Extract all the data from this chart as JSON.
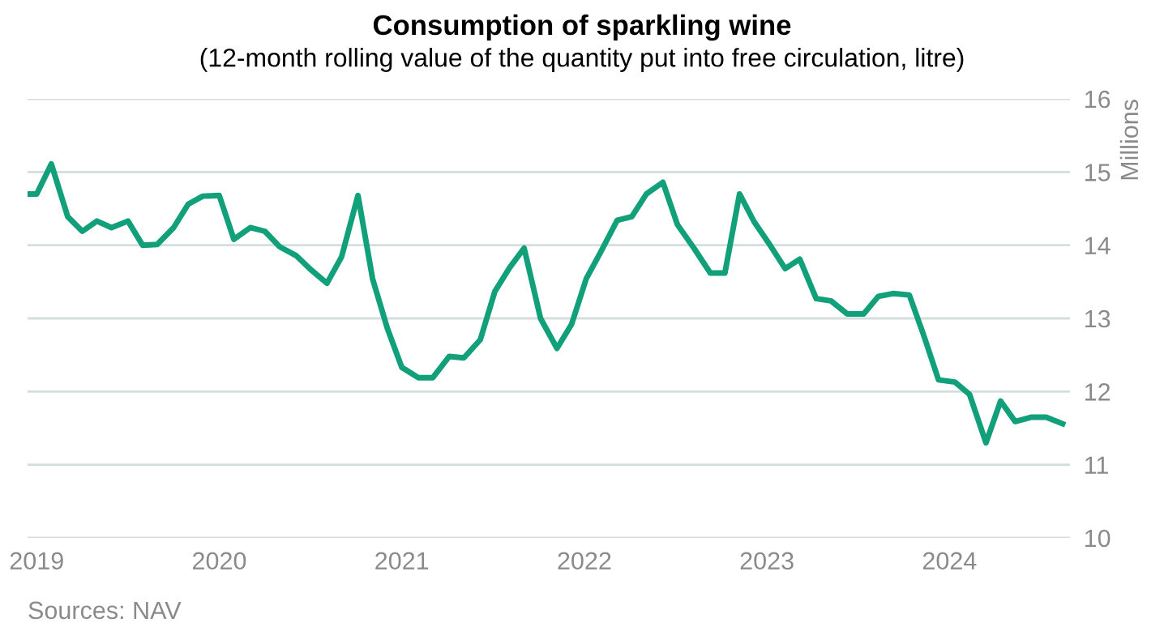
{
  "chart_data": {
    "type": "line",
    "title": "Consumption of sparkling wine",
    "subtitle": "(12-month rolling value of the quantity put into free circulation, litre)",
    "ylabel": "Millions",
    "annotations": [
      "Sources: NAV"
    ],
    "x": [
      2018.96,
      2019.0,
      2019.08,
      2019.17,
      2019.25,
      2019.33,
      2019.41,
      2019.5,
      2019.58,
      2019.66,
      2019.75,
      2019.83,
      2019.91,
      2020.0,
      2020.08,
      2020.17,
      2020.25,
      2020.33,
      2020.42,
      2020.5,
      2020.59,
      2020.67,
      2020.76,
      2020.84,
      2020.92,
      2021.0,
      2021.09,
      2021.17,
      2021.26,
      2021.34,
      2021.43,
      2021.51,
      2021.59,
      2021.67,
      2021.76,
      2021.85,
      2021.93,
      2022.01,
      2022.09,
      2022.18,
      2022.26,
      2022.34,
      2022.43,
      2022.51,
      2022.6,
      2022.69,
      2022.77,
      2022.85,
      2022.93,
      2023.02,
      2023.1,
      2023.18,
      2023.27,
      2023.35,
      2023.44,
      2023.53,
      2023.61,
      2023.69,
      2023.78,
      2023.86,
      2023.94,
      2024.03,
      2024.11,
      2024.2,
      2024.28,
      2024.36,
      2024.45,
      2024.53,
      2024.62
    ],
    "series": [
      {
        "color": "#12a07a",
        "values": [
          14.7,
          14.7,
          15.11,
          14.39,
          14.19,
          14.33,
          14.24,
          14.33,
          14.0,
          14.01,
          14.24,
          14.56,
          14.67,
          14.68,
          14.08,
          14.24,
          14.19,
          13.98,
          13.86,
          13.67,
          13.48,
          13.84,
          14.68,
          13.54,
          12.87,
          12.33,
          12.19,
          12.19,
          12.48,
          12.46,
          12.71,
          13.37,
          13.69,
          13.96,
          13.0,
          12.59,
          12.92,
          13.54,
          13.91,
          14.34,
          14.39,
          14.7,
          14.86,
          14.28,
          13.96,
          13.62,
          13.62,
          14.7,
          14.32,
          13.99,
          13.68,
          13.81,
          13.27,
          13.24,
          13.06,
          13.06,
          13.3,
          13.34,
          13.32,
          12.76,
          12.16,
          12.13,
          11.96,
          11.3,
          11.87,
          11.59,
          11.65,
          11.65,
          11.56
        ]
      }
    ],
    "xlim": [
      2018.95,
      2024.66
    ],
    "xticks": [
      2019,
      2020,
      2021,
      2022,
      2023,
      2024
    ],
    "ylim": [
      10,
      16
    ],
    "yticks": [
      10,
      11,
      12,
      13,
      14,
      15,
      16
    ],
    "grid": "y",
    "marker": "none",
    "line_style": "solid"
  }
}
